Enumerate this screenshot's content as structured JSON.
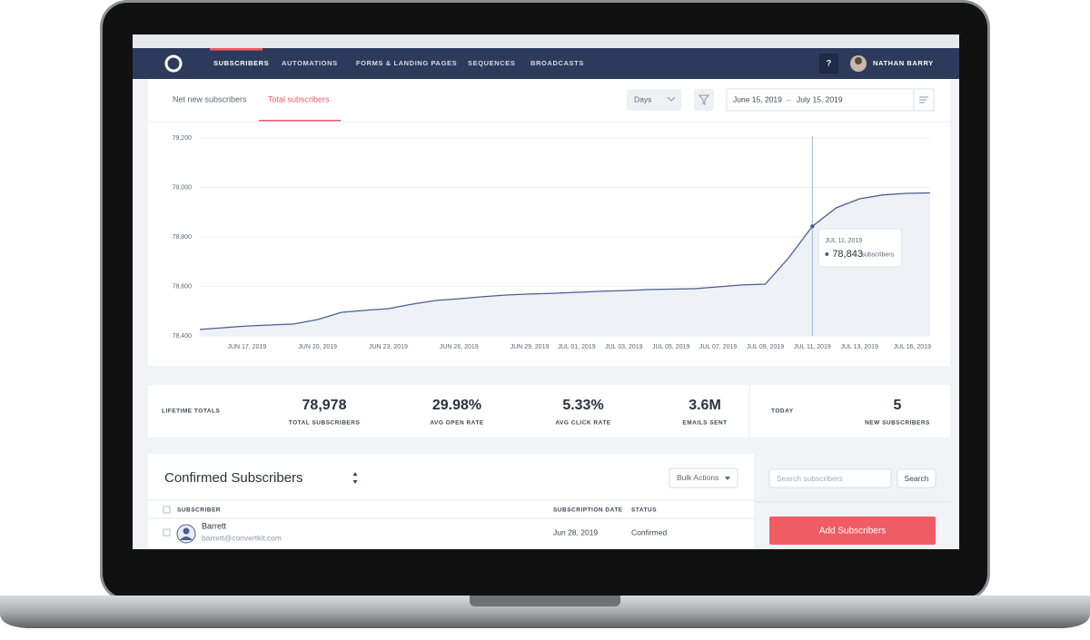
{
  "nav": {
    "items": [
      "SUBSCRIBERS",
      "AUTOMATIONS",
      "FORMS & LANDING PAGES",
      "SEQUENCES",
      "BROADCASTS"
    ],
    "help": "?",
    "user": "NATHAN BARRY"
  },
  "tabs": [
    "Net new subscribers",
    "Total subscribers"
  ],
  "controls": {
    "interval": "Days",
    "date_from": "June 15, 2019",
    "date_separator": "–",
    "date_to": "July 15, 2019"
  },
  "chart_data": {
    "type": "line",
    "categories": [
      null,
      null,
      "JUN 17, 2019",
      null,
      null,
      "JUN 20, 2019",
      null,
      null,
      "JUN 23, 2019",
      null,
      null,
      "JUN 26, 2019",
      null,
      null,
      "JUN 29, 2019",
      null,
      "JUL 01, 2019",
      null,
      "JUL 03, 2019",
      null,
      "JUL 05, 2019",
      null,
      "JUL 07, 2019",
      null,
      "JUL 09, 2019",
      null,
      "JUL 11, 2019",
      null,
      "JUL 13, 2019",
      null,
      null,
      "JUL 16, 2019"
    ],
    "values": [
      78426,
      78433,
      78440,
      78444,
      78448,
      78466,
      78495,
      78503,
      78510,
      78528,
      78543,
      78550,
      78558,
      78565,
      78569,
      78572,
      78576,
      78580,
      78583,
      78587,
      78589,
      78591,
      78598,
      78606,
      78609,
      78716,
      78843,
      78917,
      78954,
      78970,
      78976,
      78978
    ],
    "color": "#4a5f8f",
    "fill_color": "#eef1f6",
    "ylim": [
      78400,
      79200
    ],
    "yticks": [
      {
        "value": 78400,
        "label": "78,400"
      },
      {
        "value": 78600,
        "label": "78,600"
      },
      {
        "value": 78800,
        "label": "78,800"
      },
      {
        "value": 79000,
        "label": "79,000"
      },
      {
        "value": 79200,
        "label": "79,200"
      }
    ],
    "grid": true,
    "tooltip": {
      "date": "JUL 11, 2019",
      "value": "78,843",
      "unit": "subscribers"
    }
  },
  "lifetime": {
    "label": "LIFETIME TOTALS",
    "stats": [
      {
        "value": "78,978",
        "caption": "TOTAL SUBSCRIBERS"
      },
      {
        "value": "29.98%",
        "caption": "AVG OPEN RATE"
      },
      {
        "value": "5.33%",
        "caption": "AVG CLICK RATE"
      },
      {
        "value": "3.6M",
        "caption": "EMAILS SENT"
      }
    ]
  },
  "today": {
    "label": "TODAY",
    "value": "5",
    "caption": "NEW SUBSCRIBERS"
  },
  "subscribers": {
    "title": "Confirmed Subscribers",
    "bulk_actions": "Bulk Actions",
    "columns": [
      "SUBSCRIBER",
      "SUBSCRIPTION DATE",
      "STATUS"
    ],
    "rows": [
      {
        "name": "Barrett",
        "email": "barrett@convertkit.com",
        "date": "Jun 28, 2019",
        "status": "Confirmed"
      }
    ]
  },
  "search": {
    "placeholder": "Search subscribers",
    "button": "Search"
  },
  "add_button": "Add Subscribers"
}
